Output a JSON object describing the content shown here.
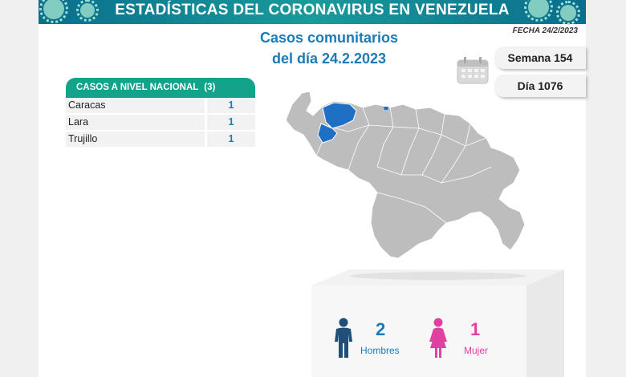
{
  "header": {
    "title": "ESTADÍSTICAS DEL CORONAVIRUS EN VENEZUELA"
  },
  "main_title": {
    "line1": "Casos comunitarios",
    "line2": "del día 24.2.2023"
  },
  "fecha": "FECHA 24/2/2023",
  "semana": "Semana 154",
  "dia": "Día 1076",
  "table": {
    "header_label": "CASOS A NIVEL NACIONAL",
    "header_count": "(3)",
    "rows": [
      {
        "name": "Caracas",
        "value": "1"
      },
      {
        "name": "Lara",
        "value": "1"
      },
      {
        "name": "Trujillo",
        "value": "1"
      }
    ]
  },
  "gender": {
    "men_count": "2",
    "men_label": "Hombres",
    "women_count": "1",
    "women_label": "Mujer"
  },
  "colors": {
    "header": "#0a6e8c",
    "accent_green": "#13a38b",
    "blue": "#1b7ab8",
    "pink": "#e040a0",
    "map_gray": "#bdbdbd",
    "map_highlight": "#1f6fc4"
  },
  "icons": [
    "virus-icon",
    "calendar-icon",
    "man-icon",
    "woman-icon"
  ]
}
